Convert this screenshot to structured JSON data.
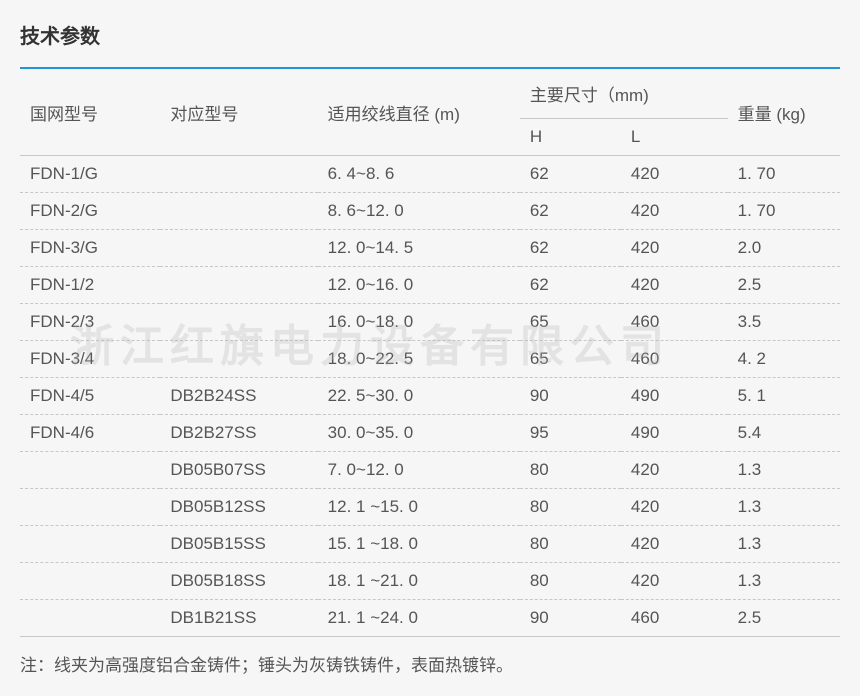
{
  "title": "技术参数",
  "watermark": "浙江红旗电力设备有限公司",
  "table": {
    "headers": {
      "model": "国网型号",
      "corresponding": "对应型号",
      "diameter": "适用绞线直径 (m)",
      "dimensions": "主要尺寸（mm)",
      "h": "H",
      "l": "L",
      "weight": "重量 (kg)"
    },
    "rows": [
      {
        "model": "FDN-1/G",
        "corr": "",
        "diam": "6. 4~8. 6",
        "h": "62",
        "l": "420",
        "wt": "1. 70"
      },
      {
        "model": "FDN-2/G",
        "corr": "",
        "diam": "8. 6~12. 0",
        "h": "62",
        "l": "420",
        "wt": "1. 70"
      },
      {
        "model": "FDN-3/G",
        "corr": "",
        "diam": "12. 0~14. 5",
        "h": "62",
        "l": "420",
        "wt": "2.0"
      },
      {
        "model": "FDN-1/2",
        "corr": "",
        "diam": "12. 0~16. 0",
        "h": "62",
        "l": "420",
        "wt": "2.5"
      },
      {
        "model": "FDN-2/3",
        "corr": "",
        "diam": "16. 0~18. 0",
        "h": "65",
        "l": "460",
        "wt": "3.5"
      },
      {
        "model": "FDN-3/4",
        "corr": "",
        "diam": "18. 0~22. 5",
        "h": "65",
        "l": "460",
        "wt": "4. 2"
      },
      {
        "model": "FDN-4/5",
        "corr": "DB2B24SS",
        "diam": "22. 5~30. 0",
        "h": "90",
        "l": "490",
        "wt": "5. 1"
      },
      {
        "model": "FDN-4/6",
        "corr": "DB2B27SS",
        "diam": "30. 0~35. 0",
        "h": "95",
        "l": "490",
        "wt": "5.4"
      },
      {
        "model": "",
        "corr": "DB05B07SS",
        "diam": "7. 0~12. 0",
        "h": "80",
        "l": "420",
        "wt": "1.3"
      },
      {
        "model": "",
        "corr": "DB05B12SS",
        "diam": "12. 1 ~15. 0",
        "h": "80",
        "l": "420",
        "wt": "1.3"
      },
      {
        "model": "",
        "corr": "DB05B15SS",
        "diam": "15. 1 ~18. 0",
        "h": "80",
        "l": "420",
        "wt": "1.3"
      },
      {
        "model": "",
        "corr": "DB05B18SS",
        "diam": "18. 1 ~21. 0",
        "h": "80",
        "l": "420",
        "wt": "1.3"
      },
      {
        "model": "",
        "corr": "DB1B21SS",
        "diam": "21. 1 ~24. 0",
        "h": "90",
        "l": "460",
        "wt": "2.5"
      }
    ]
  },
  "footnote": "注：线夹为高强度铝合金铸件；锤头为灰铸铁铸件，表面热镀锌。",
  "colors": {
    "border_top": "#2196d6",
    "border_solid": "#c7c7c7",
    "border_dashed": "#c7c7c7",
    "text": "#555",
    "background": "#f6f6f6"
  }
}
